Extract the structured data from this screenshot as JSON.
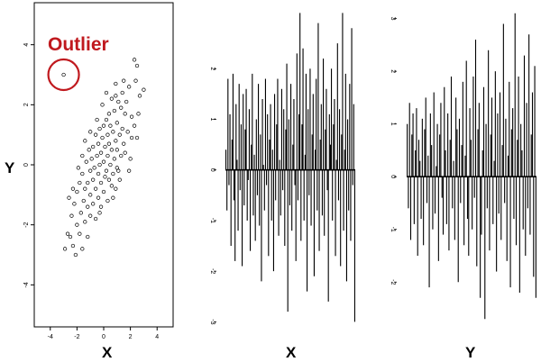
{
  "chart_data": [
    {
      "type": "scatter",
      "panel": "scatter",
      "xlabel": "X",
      "ylabel": "Y",
      "xlim": [
        -5.2,
        5.2
      ],
      "ylim": [
        -5.4,
        5.4
      ],
      "xticks": [
        -4,
        -2,
        0,
        2,
        4
      ],
      "yticks": [
        -4,
        -2,
        0,
        2,
        4
      ],
      "xtick_labels": [
        "-4",
        "-2",
        "0",
        "2",
        "4"
      ],
      "ytick_labels": [
        "-4",
        "-2",
        "0",
        "2",
        "4"
      ],
      "annotation": {
        "text": "Outlier",
        "x": -3.0,
        "y": 3.0,
        "color": "#c0191e"
      },
      "points": [
        [
          -3.0,
          3.0
        ],
        [
          2.3,
          3.5
        ],
        [
          2.5,
          3.3
        ],
        [
          2.4,
          2.8
        ],
        [
          2.7,
          2.3
        ],
        [
          1.9,
          2.6
        ],
        [
          1.4,
          2.4
        ],
        [
          1.7,
          2.1
        ],
        [
          0.9,
          2.3
        ],
        [
          1.1,
          2.1
        ],
        [
          0.6,
          2.2
        ],
        [
          1.3,
          1.9
        ],
        [
          0.8,
          1.8
        ],
        [
          1.6,
          1.7
        ],
        [
          2.1,
          1.6
        ],
        [
          0.4,
          1.7
        ],
        [
          0.2,
          1.5
        ],
        [
          1.0,
          1.4
        ],
        [
          0.5,
          1.3
        ],
        [
          1.4,
          1.2
        ],
        [
          0.0,
          1.3
        ],
        [
          -0.3,
          1.2
        ],
        [
          0.7,
          1.1
        ],
        [
          1.2,
          1.0
        ],
        [
          0.3,
          1.0
        ],
        [
          -0.6,
          1.0
        ],
        [
          -0.1,
          0.9
        ],
        [
          0.9,
          0.8
        ],
        [
          0.4,
          0.7
        ],
        [
          -0.4,
          0.7
        ],
        [
          1.5,
          0.7
        ],
        [
          2.1,
          0.9
        ],
        [
          0.1,
          0.6
        ],
        [
          -0.8,
          0.6
        ],
        [
          0.6,
          0.5
        ],
        [
          1.0,
          0.5
        ],
        [
          -0.2,
          0.4
        ],
        [
          -1.1,
          0.5
        ],
        [
          0.3,
          0.3
        ],
        [
          -0.5,
          0.3
        ],
        [
          0.8,
          0.2
        ],
        [
          1.3,
          0.3
        ],
        [
          -0.9,
          0.2
        ],
        [
          0.0,
          0.1
        ],
        [
          -0.3,
          0.0
        ],
        [
          0.5,
          0.0
        ],
        [
          -1.3,
          0.1
        ],
        [
          1.0,
          -0.1
        ],
        [
          -0.7,
          -0.1
        ],
        [
          0.2,
          -0.2
        ],
        [
          -1.0,
          -0.2
        ],
        [
          0.7,
          -0.3
        ],
        [
          -0.4,
          -0.3
        ],
        [
          -1.6,
          -0.3
        ],
        [
          0.1,
          -0.4
        ],
        [
          -0.8,
          -0.5
        ],
        [
          0.4,
          -0.5
        ],
        [
          -1.2,
          -0.6
        ],
        [
          -0.2,
          -0.6
        ],
        [
          -1.8,
          -0.6
        ],
        [
          0.6,
          -0.7
        ],
        [
          -0.6,
          -0.8
        ],
        [
          -1.4,
          -0.8
        ],
        [
          0.0,
          -0.9
        ],
        [
          -1.0,
          -1.0
        ],
        [
          -2.0,
          -0.9
        ],
        [
          -0.4,
          -1.1
        ],
        [
          -1.5,
          -1.2
        ],
        [
          -0.8,
          -1.3
        ],
        [
          -1.2,
          -1.4
        ],
        [
          -2.2,
          -1.3
        ],
        [
          -0.2,
          -1.4
        ],
        [
          -1.7,
          -1.6
        ],
        [
          -1.0,
          -1.7
        ],
        [
          -2.4,
          -1.7
        ],
        [
          -1.4,
          -1.9
        ],
        [
          -2.0,
          -2.0
        ],
        [
          -0.6,
          -1.8
        ],
        [
          -1.8,
          -2.3
        ],
        [
          -2.5,
          -2.4
        ],
        [
          -1.2,
          -2.4
        ],
        [
          -2.3,
          -2.7
        ],
        [
          -1.6,
          -2.8
        ],
        [
          -2.7,
          -2.3
        ],
        [
          -2.9,
          -2.8
        ],
        [
          -2.1,
          -3.0
        ],
        [
          1.8,
          1.1
        ],
        [
          2.3,
          1.3
        ],
        [
          1.6,
          0.4
        ],
        [
          2.0,
          0.2
        ],
        [
          1.2,
          -0.5
        ],
        [
          2.5,
          0.9
        ],
        [
          0.9,
          -0.8
        ],
        [
          -0.1,
          2.0
        ],
        [
          -0.5,
          1.5
        ],
        [
          -1.0,
          1.1
        ],
        [
          -1.4,
          0.8
        ],
        [
          0.3,
          -1.2
        ],
        [
          -0.3,
          -1.6
        ],
        [
          0.2,
          2.4
        ],
        [
          0.9,
          2.7
        ],
        [
          1.5,
          2.8
        ],
        [
          -1.6,
          0.3
        ],
        [
          -1.9,
          -0.1
        ],
        [
          -2.3,
          -0.8
        ],
        [
          -2.6,
          -1.1
        ],
        [
          0.7,
          -1.1
        ],
        [
          1.1,
          -0.2
        ],
        [
          1.9,
          -0.2
        ],
        [
          2.6,
          1.7
        ],
        [
          3.0,
          2.5
        ]
      ]
    },
    {
      "type": "line",
      "panel": "series-x",
      "xlabel": "X",
      "ylim": [
        -3.1,
        3.25
      ],
      "yticks": [
        -3,
        -2,
        -1,
        0,
        1,
        2
      ],
      "ytick_labels": [
        "-3",
        "-2",
        "-1",
        "0",
        "1",
        "2"
      ],
      "spikes": [
        0.4,
        -0.8,
        1.8,
        -0.3,
        1.1,
        -1.5,
        0.6,
        1.9,
        -0.6,
        -1.8,
        1.3,
        0.2,
        -1.2,
        1.7,
        -0.4,
        0.9,
        -1.9,
        1.5,
        -0.7,
        0.8,
        1.6,
        -1.0,
        -0.2,
        1.2,
        -1.6,
        0.5,
        1.9,
        -0.9,
        0.3,
        -1.4,
        1.0,
        -0.5,
        1.7,
        -1.1,
        0.7,
        -2.2,
        1.4,
        0.1,
        -0.8,
        1.8,
        -0.3,
        1.1,
        -1.7,
        0.6,
        1.3,
        -1.0,
        0.4,
        -2.0,
        1.5,
        -0.6,
        0.9,
        1.8,
        -1.3,
        0.2,
        -0.9,
        1.6,
        -0.4,
        1.2,
        -1.5,
        0.8,
        2.1,
        -2.8,
        1.0,
        -0.7,
        1.7,
        -1.2,
        0.5,
        1.4,
        -0.3,
        -1.8,
        2.3,
        -0.6,
        1.1,
        3.1,
        -1.4,
        0.9,
        2.4,
        -1.0,
        0.3,
        1.9,
        -2.4,
        1.2,
        -0.5,
        2.0,
        -1.1,
        0.7,
        1.5,
        -2.1,
        0.4,
        1.8,
        -0.8,
        2.9,
        -1.6,
        0.6,
        1.3,
        -0.9,
        2.2,
        -1.3,
        0.8,
        1.6,
        -0.4,
        -2.6,
        1.1,
        0.5,
        2.0,
        -1.0,
        0.9,
        1.4,
        -1.7,
        0.2,
        2.5,
        -0.6,
        1.2,
        -1.9,
        0.7,
        3.1,
        -1.2,
        0.4,
        1.9,
        -2.2,
        1.0,
        -0.8,
        1.7,
        -1.4,
        2.8,
        -0.3,
        1.3,
        -3.0
      ]
    },
    {
      "type": "line",
      "panel": "series-y",
      "xlabel": "Y",
      "ylim": [
        -2.85,
        3.25
      ],
      "yticks": [
        -2,
        -1,
        0,
        1,
        2,
        3
      ],
      "ytick_labels": [
        "-2",
        "-1",
        "0",
        "1",
        "2",
        "3"
      ],
      "spikes": [
        1.0,
        -0.6,
        1.4,
        -1.2,
        0.8,
        1.2,
        -0.9,
        0.5,
        1.3,
        -1.5,
        0.7,
        0.3,
        -0.8,
        1.1,
        -1.3,
        0.9,
        1.5,
        -0.5,
        0.4,
        -2.1,
        1.2,
        0.6,
        -1.0,
        1.6,
        -0.7,
        0.2,
        1.0,
        -1.6,
        0.8,
        1.4,
        -0.4,
        -1.1,
        1.7,
        0.5,
        -0.9,
        1.2,
        -1.4,
        0.7,
        1.9,
        -0.6,
        0.3,
        -1.2,
        1.5,
        0.9,
        -2.0,
        1.1,
        -0.5,
        0.6,
        1.8,
        -1.3,
        0.4,
        2.2,
        -0.8,
        -1.5,
        1.3,
        0.7,
        -1.0,
        1.9,
        -0.4,
        2.6,
        -1.7,
        0.9,
        1.4,
        -2.3,
        -1.1,
        0.5,
        1.7,
        -2.7,
        1.0,
        -0.6,
        2.4,
        -1.4,
        0.8,
        1.5,
        -0.9,
        0.3,
        2.0,
        -1.8,
        1.2,
        -0.7,
        1.6,
        -1.2,
        0.6,
        2.9,
        -0.5,
        1.1,
        -1.6,
        0.4,
        1.8,
        -2.1,
        0.9,
        1.3,
        -0.8,
        3.1,
        -1.3,
        0.7,
        1.9,
        -2.2,
        1.0,
        0.5,
        -1.0,
        2.3,
        -1.5,
        1.4,
        -0.6,
        2.7,
        -1.1,
        0.8,
        1.6,
        -1.9,
        2.1,
        -2.3
      ]
    }
  ]
}
